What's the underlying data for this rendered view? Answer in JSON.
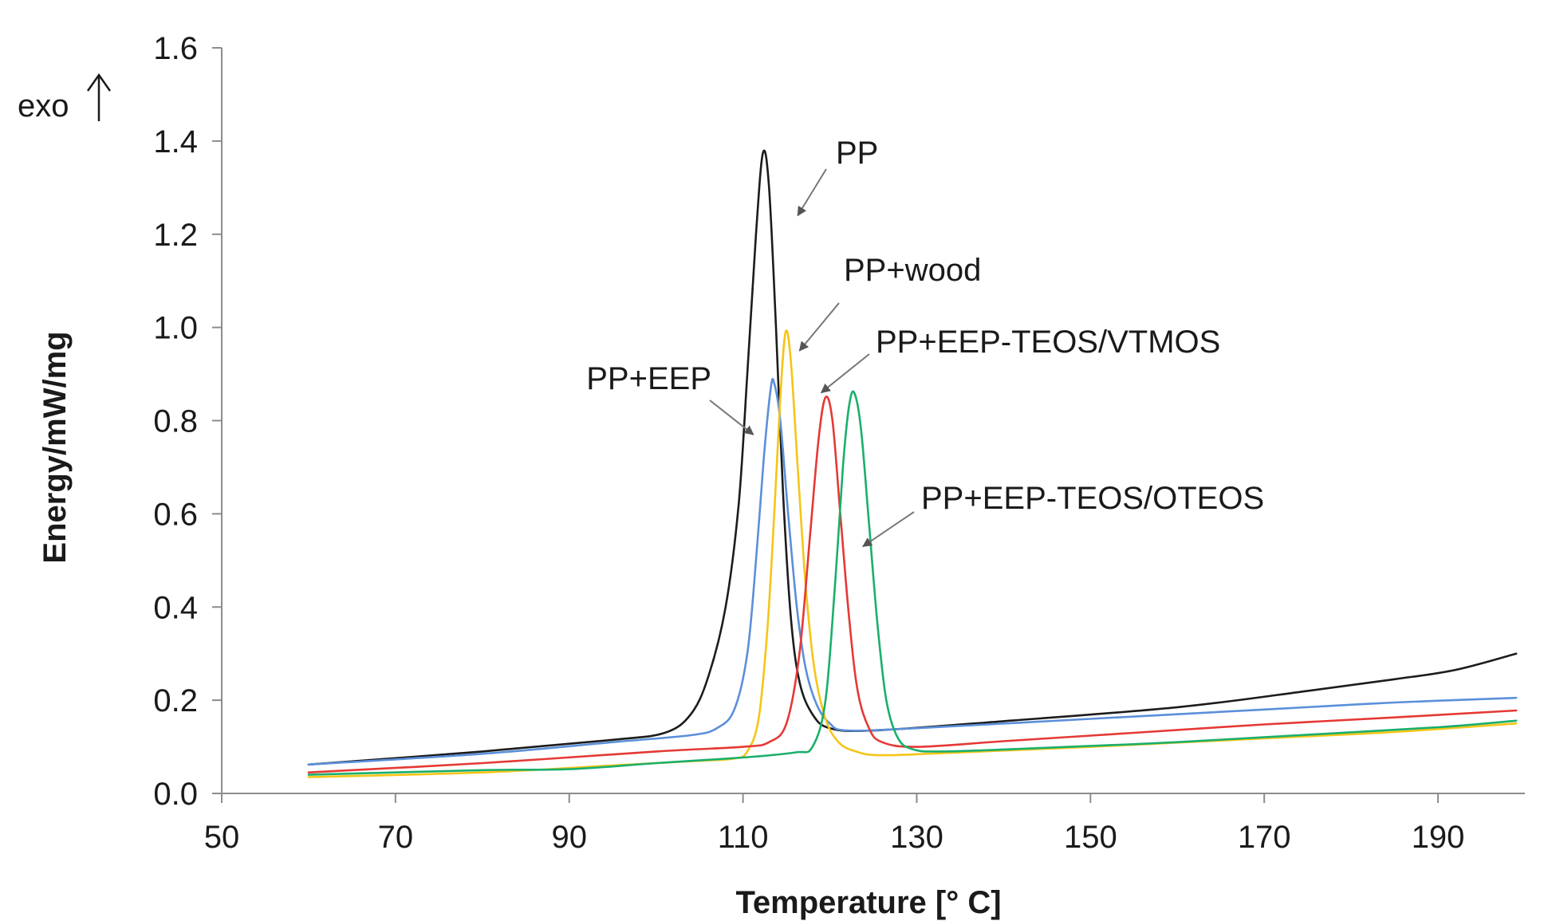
{
  "chart_data": {
    "type": "line",
    "title": "",
    "xlabel": "Temperature [° C]",
    "ylabel": "Energy/mW/mg",
    "xlim": [
      50,
      200
    ],
    "ylim": [
      0,
      1.6
    ],
    "xticks": [
      50,
      70,
      90,
      110,
      130,
      150,
      170,
      190
    ],
    "xtick_labels": [
      "50",
      "70",
      "90",
      "110",
      "130",
      "150",
      "170",
      "190"
    ],
    "yticks": [
      0,
      0.2,
      0.4,
      0.6,
      0.8,
      1.0,
      1.2,
      1.4,
      1.6
    ],
    "ytick_labels": [
      "0.0",
      "0.2",
      "0.4",
      "0.6",
      "0.8",
      "1.0",
      "1.2",
      "1.4",
      "1.6"
    ],
    "grid": false,
    "direction_label": "exo",
    "series": [
      {
        "name": "PP",
        "color": "#1c1c1c",
        "points": [
          [
            60,
            0.062
          ],
          [
            80,
            0.09
          ],
          [
            95,
            0.115
          ],
          [
            101,
            0.13
          ],
          [
            104,
            0.17
          ],
          [
            106,
            0.25
          ],
          [
            108,
            0.4
          ],
          [
            109.5,
            0.62
          ],
          [
            110.5,
            0.9
          ],
          [
            111.5,
            1.2
          ],
          [
            112.3,
            1.375
          ],
          [
            113,
            1.3
          ],
          [
            113.8,
            1.0
          ],
          [
            114.6,
            0.65
          ],
          [
            115.5,
            0.38
          ],
          [
            116.5,
            0.24
          ],
          [
            118,
            0.17
          ],
          [
            120,
            0.14
          ],
          [
            125,
            0.135
          ],
          [
            140,
            0.155
          ],
          [
            160,
            0.185
          ],
          [
            175,
            0.22
          ],
          [
            185,
            0.245
          ],
          [
            192,
            0.265
          ],
          [
            199,
            0.3
          ]
        ]
      },
      {
        "name": "PP+EEP",
        "color": "#5b8fd9",
        "points": [
          [
            60,
            0.062
          ],
          [
            80,
            0.085
          ],
          [
            95,
            0.11
          ],
          [
            104,
            0.125
          ],
          [
            107,
            0.14
          ],
          [
            109,
            0.18
          ],
          [
            110.5,
            0.3
          ],
          [
            111.5,
            0.5
          ],
          [
            112.4,
            0.72
          ],
          [
            113.2,
            0.87
          ],
          [
            113.6,
            0.88
          ],
          [
            114.3,
            0.8
          ],
          [
            115.2,
            0.6
          ],
          [
            116.2,
            0.4
          ],
          [
            117.2,
            0.27
          ],
          [
            118.5,
            0.19
          ],
          [
            120,
            0.15
          ],
          [
            122,
            0.135
          ],
          [
            130,
            0.14
          ],
          [
            150,
            0.16
          ],
          [
            170,
            0.18
          ],
          [
            185,
            0.195
          ],
          [
            199,
            0.205
          ]
        ]
      },
      {
        "name": "PP+wood",
        "color": "#f5c518",
        "points": [
          [
            60,
            0.035
          ],
          [
            80,
            0.045
          ],
          [
            95,
            0.06
          ],
          [
            105,
            0.07
          ],
          [
            109,
            0.075
          ],
          [
            110.5,
            0.09
          ],
          [
            111.8,
            0.16
          ],
          [
            112.8,
            0.35
          ],
          [
            113.6,
            0.6
          ],
          [
            114.3,
            0.85
          ],
          [
            114.9,
            0.99
          ],
          [
            115.5,
            0.93
          ],
          [
            116.3,
            0.7
          ],
          [
            117.2,
            0.45
          ],
          [
            118.2,
            0.27
          ],
          [
            119.5,
            0.16
          ],
          [
            121,
            0.11
          ],
          [
            123,
            0.09
          ],
          [
            126,
            0.082
          ],
          [
            135,
            0.088
          ],
          [
            150,
            0.1
          ],
          [
            170,
            0.118
          ],
          [
            185,
            0.132
          ],
          [
            199,
            0.15
          ]
        ]
      },
      {
        "name": "PP+EEP-TEOS/VTMOS",
        "color": "#e53935",
        "points": [
          [
            60,
            0.045
          ],
          [
            80,
            0.065
          ],
          [
            100,
            0.09
          ],
          [
            110,
            0.1
          ],
          [
            113,
            0.11
          ],
          [
            115,
            0.15
          ],
          [
            116.5,
            0.3
          ],
          [
            117.7,
            0.55
          ],
          [
            118.7,
            0.76
          ],
          [
            119.5,
            0.85
          ],
          [
            120.3,
            0.8
          ],
          [
            121.2,
            0.6
          ],
          [
            122.2,
            0.38
          ],
          [
            123.2,
            0.22
          ],
          [
            124.5,
            0.14
          ],
          [
            126,
            0.11
          ],
          [
            130,
            0.1
          ],
          [
            140,
            0.112
          ],
          [
            155,
            0.13
          ],
          [
            170,
            0.148
          ],
          [
            185,
            0.163
          ],
          [
            199,
            0.178
          ]
        ]
      },
      {
        "name": "PP+EEP-TEOS/OTEOS",
        "color": "#1aaf6c",
        "points": [
          [
            60,
            0.04
          ],
          [
            80,
            0.05
          ],
          [
            90,
            0.052
          ],
          [
            100,
            0.065
          ],
          [
            110,
            0.077
          ],
          [
            116,
            0.088
          ],
          [
            118,
            0.1
          ],
          [
            119.5,
            0.2
          ],
          [
            120.6,
            0.45
          ],
          [
            121.5,
            0.7
          ],
          [
            122.2,
            0.83
          ],
          [
            122.8,
            0.86
          ],
          [
            123.6,
            0.78
          ],
          [
            124.5,
            0.58
          ],
          [
            125.5,
            0.36
          ],
          [
            126.5,
            0.2
          ],
          [
            127.8,
            0.12
          ],
          [
            129.5,
            0.095
          ],
          [
            133,
            0.09
          ],
          [
            145,
            0.098
          ],
          [
            160,
            0.11
          ],
          [
            175,
            0.126
          ],
          [
            190,
            0.142
          ],
          [
            199,
            0.156
          ]
        ]
      }
    ],
    "annotations": [
      {
        "label": "PP",
        "series": "PP",
        "tip": [
          116.3,
          1.24
        ]
      },
      {
        "label": "PP+wood",
        "series": "PP+wood",
        "tip": [
          116.5,
          0.95
        ]
      },
      {
        "label": "PP+EEP",
        "series": "PP+EEP",
        "tip": [
          111.2,
          0.77
        ]
      },
      {
        "label": "PP+EEP-TEOS/VTMOS",
        "series": "PP+EEP-TEOS/VTMOS",
        "tip": [
          119,
          0.86
        ]
      },
      {
        "label": "PP+EEP-TEOS/OTEOS",
        "series": "PP+EEP-TEOS/OTEOS",
        "tip": [
          123.8,
          0.53
        ]
      }
    ]
  }
}
